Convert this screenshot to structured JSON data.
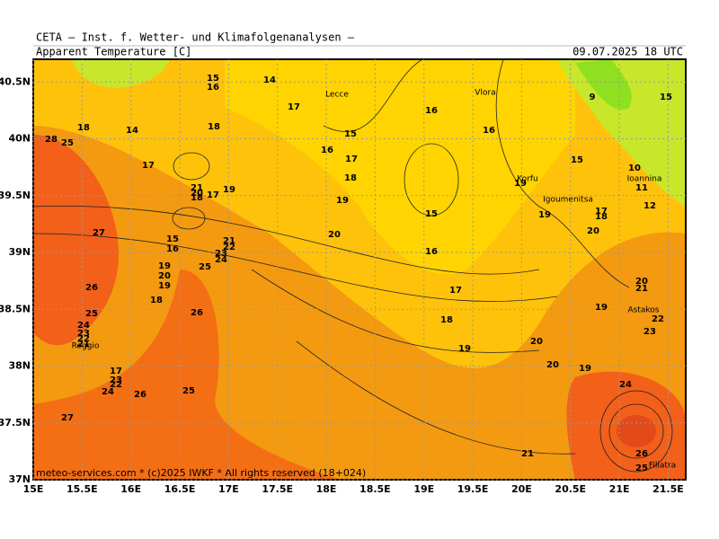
{
  "header": {
    "institute": "CETA — Inst. f. Wetter- und Klimafolgenanalysen —",
    "parameter": "Apparent Temperature [C]",
    "valid_time": "09.07.2025 18 UTC"
  },
  "footer": "meteo-services.com * (c)2025 IWKF * All rights reserved (18+024)",
  "lonlim": [
    15,
    21.68
  ],
  "latlim": [
    37,
    40.7
  ],
  "lon_ticks": [
    {
      "value": 15,
      "label": "15E"
    },
    {
      "value": 15.5,
      "label": "15.5E"
    },
    {
      "value": 16,
      "label": "16E"
    },
    {
      "value": 16.5,
      "label": "16.5E"
    },
    {
      "value": 17,
      "label": "17E"
    },
    {
      "value": 17.5,
      "label": "17.5E"
    },
    {
      "value": 18,
      "label": "18E"
    },
    {
      "value": 18.5,
      "label": "18.5E"
    },
    {
      "value": 19,
      "label": "19E"
    },
    {
      "value": 19.5,
      "label": "19.5E"
    },
    {
      "value": 20,
      "label": "20E"
    },
    {
      "value": 20.5,
      "label": "20.5E"
    },
    {
      "value": 21,
      "label": "21E"
    },
    {
      "value": 21.5,
      "label": "21.5E"
    }
  ],
  "lat_ticks": [
    {
      "value": 37,
      "label": "37N"
    },
    {
      "value": 37.5,
      "label": "37.5N"
    },
    {
      "value": 38,
      "label": "38N"
    },
    {
      "value": 38.5,
      "label": "38.5N"
    },
    {
      "value": 39,
      "label": "39N"
    },
    {
      "value": 39.5,
      "label": "39.5N"
    },
    {
      "value": 40,
      "label": "40N"
    },
    {
      "value": 40.5,
      "label": "40.5N"
    }
  ],
  "places": [
    "Lecce",
    "Vlora",
    "Korfu",
    "Igoumenitsa",
    "Ioannina",
    "Astakos",
    "Reggio",
    "Filiatra"
  ],
  "contour_labels": [
    28,
    25,
    18,
    14,
    17,
    15,
    16,
    14,
    17,
    18,
    21,
    20,
    18,
    17,
    19,
    15,
    16,
    17,
    18,
    19,
    20,
    16,
    16,
    15,
    16,
    17,
    18,
    19,
    20,
    20,
    21,
    19,
    19,
    19,
    20,
    15,
    10,
    11,
    12,
    17,
    18,
    9,
    15,
    27,
    26,
    25,
    24,
    23,
    22,
    21,
    17,
    23,
    22,
    24,
    26,
    25,
    27,
    15,
    16,
    19,
    20,
    19,
    18,
    26,
    25,
    21,
    22,
    23,
    24,
    24,
    26,
    25,
    22,
    23,
    20,
    21,
    19
  ]
}
